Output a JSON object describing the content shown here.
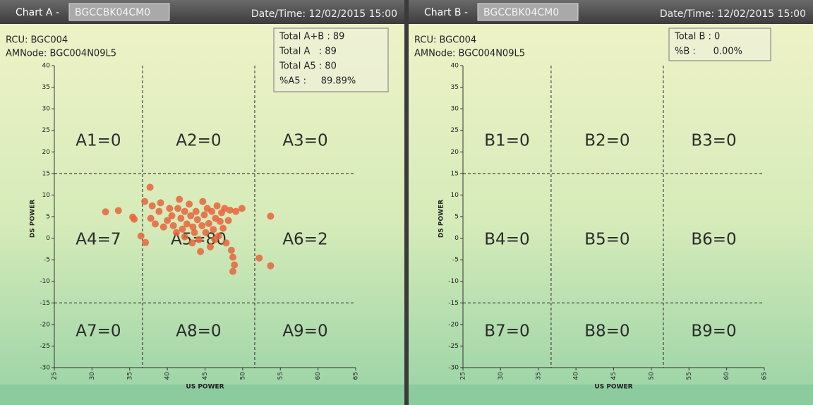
{
  "chart_data": [
    {
      "type": "scatter",
      "title": "Chart A -",
      "chart_id": "BGCCBK04CM0",
      "datetime": "Date/Time: 12/02/2015 15:00",
      "info": [
        "RCU: BGC004",
        "AMNode: BGC004N09L5"
      ],
      "summary": [
        "Total A+B : 89",
        "Total A   : 89",
        "Total A5 : 80",
        "%A5 :     89.89%"
      ],
      "zones": [
        "A1=0",
        "A2=0",
        "A3=0",
        "A4=7",
        "A5=80",
        "A6=2",
        "A7=0",
        "A8=0",
        "A9=0"
      ],
      "xlabel": "US POWER",
      "ylabel": "DS POWER",
      "xlim": [
        25,
        65
      ],
      "ylim": [
        -30,
        40
      ],
      "xticks": [
        25,
        30,
        35,
        40,
        45,
        50,
        55,
        60,
        65
      ],
      "yticks": [
        -30,
        -25,
        -20,
        -15,
        -10,
        -5,
        0,
        5,
        10,
        15,
        20,
        25,
        30,
        35,
        40
      ],
      "x_dividers": [
        36.7,
        51.6
      ],
      "y_dividers": [
        15,
        -15
      ],
      "color": "#e8643c",
      "x": [
        31.8,
        33.5,
        35.6,
        35.4,
        36.5,
        37.1,
        37.0,
        37.7,
        38.0,
        37.8,
        38.4,
        38.9,
        39.1,
        39.5,
        40.0,
        40.3,
        40.6,
        40.8,
        41.2,
        41.4,
        41.6,
        41.8,
        42.0,
        42.3,
        42.3,
        42.6,
        42.9,
        43.1,
        43.3,
        43.4,
        43.6,
        43.8,
        44.0,
        44.2,
        44.4,
        44.6,
        44.7,
        44.9,
        45.1,
        45.3,
        45.5,
        45.7,
        45.9,
        46.1,
        46.3,
        46.4,
        46.6,
        46.8,
        47.0,
        47.2,
        47.4,
        47.6,
        47.8,
        48.1,
        48.3,
        48.5,
        48.7,
        48.7,
        48.9,
        49.1,
        49.9,
        52.2,
        53.7,
        53.7
      ],
      "values": [
        6.1,
        6.4,
        4.4,
        4.9,
        0.5,
        -1,
        8.5,
        11.8,
        7.5,
        4.6,
        3.3,
        6.2,
        8.2,
        2.6,
        4.1,
        6.9,
        5.2,
        2.9,
        1.3,
        6.9,
        9,
        4.6,
        2.1,
        6.2,
        0.3,
        3.3,
        7.9,
        5.2,
        -1.1,
        2.6,
        1.3,
        6.2,
        4.3,
        -0.3,
        -3.1,
        2.9,
        8.5,
        5.4,
        1.3,
        6.9,
        3.4,
        -2,
        6.2,
        2,
        -0.3,
        4.6,
        7.5,
        0.5,
        3.9,
        5.9,
        2.3,
        6.9,
        -1.1,
        4.1,
        6.5,
        -2.8,
        -4.4,
        -7.7,
        -6.2,
        6.2,
        6.9,
        -4.6,
        -6.4,
        5.1
      ]
    },
    {
      "type": "scatter",
      "title": "Chart B -",
      "chart_id": "BGCCBK04CM0",
      "datetime": "Date/Time: 12/02/2015 15:00",
      "info": [
        "RCU: BGC004",
        "AMNode: BGC004N09L5"
      ],
      "summary": [
        "Total B : 0",
        "%B :      0.00%"
      ],
      "zones": [
        "B1=0",
        "B2=0",
        "B3=0",
        "B4=0",
        "B5=0",
        "B6=0",
        "B7=0",
        "B8=0",
        "B9=0"
      ],
      "xlabel": "US POWER",
      "ylabel": "DS POWER",
      "xlim": [
        25,
        65
      ],
      "ylim": [
        -30,
        40
      ],
      "xticks": [
        25,
        30,
        35,
        40,
        45,
        50,
        55,
        60,
        65
      ],
      "yticks": [
        -30,
        -25,
        -20,
        -15,
        -10,
        -5,
        0,
        5,
        10,
        15,
        20,
        25,
        30,
        35,
        40
      ],
      "x_dividers": [
        36.7,
        51.6
      ],
      "y_dividers": [
        15,
        -15
      ],
      "color": "#e8643c",
      "x": [],
      "values": []
    }
  ]
}
